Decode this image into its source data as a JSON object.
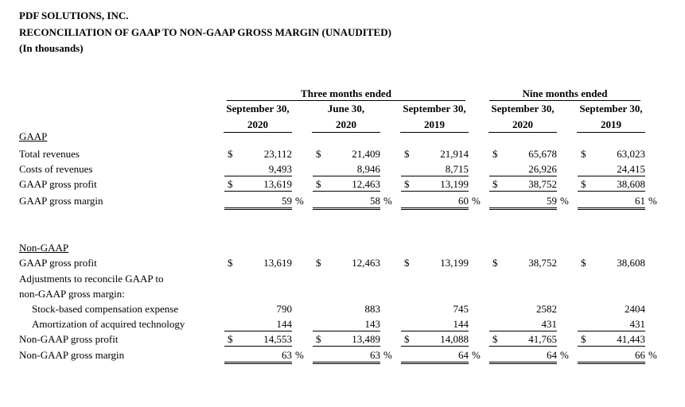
{
  "header": {
    "company": "PDF SOLUTIONS, INC.",
    "title": "RECONCILIATION OF GAAP TO NON-GAAP GROSS MARGIN (UNAUDITED)",
    "units": "(In thousands)"
  },
  "column_groups": [
    {
      "label": "Three months ended"
    },
    {
      "label": "Nine months ended"
    }
  ],
  "columns": [
    {
      "line1": "September 30,",
      "line2": "2020"
    },
    {
      "line1": "June 30,",
      "line2": "2020"
    },
    {
      "line1": "September 30,",
      "line2": "2019"
    },
    {
      "line1": "September 30,",
      "line2": "2020"
    },
    {
      "line1": "September 30,",
      "line2": "2019"
    }
  ],
  "sections": [
    {
      "title": "GAAP"
    },
    {
      "title": "Non-GAAP"
    }
  ],
  "currency_symbol": "$",
  "percent_symbol": "%",
  "rows": [
    {
      "label": "Total revenues",
      "values": [
        "23,112",
        "21,409",
        "21,914",
        "65,678",
        "63,023"
      ],
      "dollar": true
    },
    {
      "label": "Costs of revenues",
      "values": [
        "9,493",
        "8,946",
        "8,715",
        "26,926",
        "24,415"
      ]
    },
    {
      "label": "GAAP gross profit",
      "values": [
        "13,619",
        "12,463",
        "13,199",
        "38,752",
        "38,608"
      ],
      "dollar": true
    },
    {
      "label": "GAAP gross margin",
      "values": [
        "59",
        "58",
        "60",
        "59",
        "61"
      ],
      "percent": true
    },
    {
      "label": "GAAP gross profit",
      "values": [
        "13,619",
        "12,463",
        "13,199",
        "38,752",
        "38,608"
      ],
      "dollar": true
    },
    {
      "label": "Adjustments to reconcile GAAP to",
      "values": []
    },
    {
      "label": "non-GAAP gross margin:",
      "values": []
    },
    {
      "label": "Stock-based compensation expense",
      "values": [
        "790",
        "883",
        "745",
        "2582",
        "2404"
      ]
    },
    {
      "label": "Amortization of acquired technology",
      "values": [
        "144",
        "143",
        "144",
        "431",
        "431"
      ]
    },
    {
      "label": "Non-GAAP gross profit",
      "values": [
        "14,553",
        "13,489",
        "14,088",
        "41,765",
        "41,443"
      ],
      "dollar": true
    },
    {
      "label": "Non-GAAP gross margin",
      "values": [
        "63",
        "63",
        "64",
        "64",
        "66"
      ],
      "percent": true
    }
  ]
}
